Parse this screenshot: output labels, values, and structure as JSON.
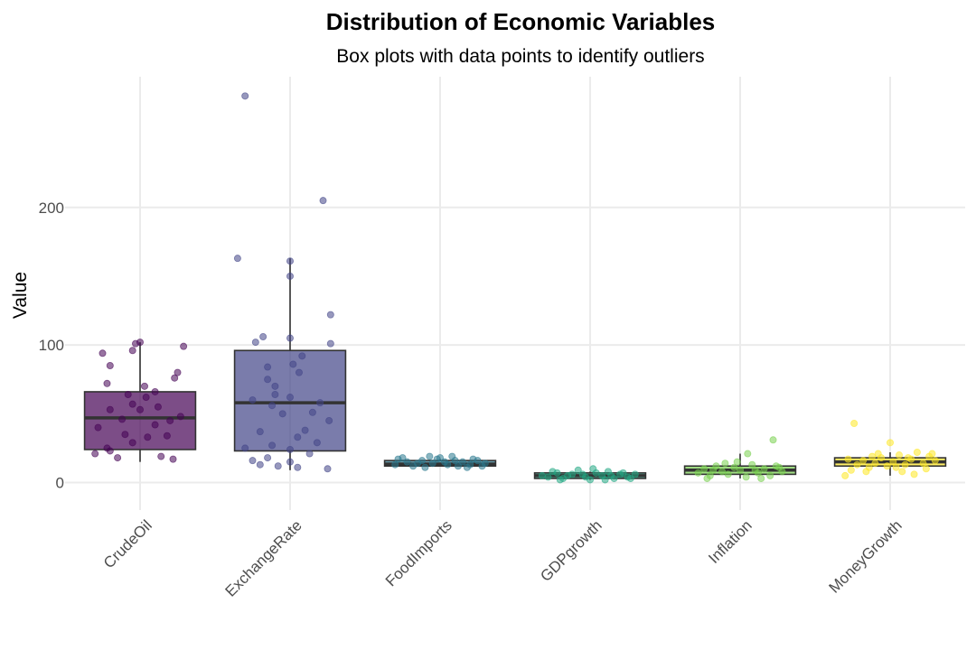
{
  "chart_data": {
    "type": "boxplot",
    "title": "Distribution of Economic Variables",
    "subtitle": "Box plots with data points to identify outliers",
    "xlabel": "",
    "ylabel": "Value",
    "ylim": [
      -20,
      295
    ],
    "yticks": [
      0,
      100,
      200
    ],
    "grid": true,
    "legend": "none",
    "categories": [
      "CrudeOil",
      "ExchangeRate",
      "FoodImports",
      "GDPgrowth",
      "Inflation",
      "MoneyGrowth"
    ],
    "colors": [
      "#440154",
      "#414487",
      "#2a788e",
      "#22a884",
      "#7ad151",
      "#fde725"
    ],
    "boxes": [
      {
        "q1": 24,
        "median": 47,
        "q3": 66,
        "whisker_low": 15,
        "whisker_high": 102
      },
      {
        "q1": 23,
        "median": 58,
        "q3": 96,
        "whisker_low": 9,
        "whisker_high": 163
      },
      {
        "q1": 12,
        "median": 13.5,
        "q3": 16,
        "whisker_low": 12,
        "whisker_high": 17
      },
      {
        "q1": 3,
        "median": 5,
        "q3": 7,
        "whisker_low": 2,
        "whisker_high": 8
      },
      {
        "q1": 6,
        "median": 9,
        "q3": 12,
        "whisker_low": 3,
        "whisker_high": 21
      },
      {
        "q1": 12,
        "median": 15,
        "q3": 18,
        "whisker_low": 5,
        "whisker_high": 22
      }
    ],
    "points": [
      [
        {
          "dx": -0.3,
          "y": 21
        },
        {
          "dx": 0.14,
          "y": 19
        },
        {
          "dx": -0.15,
          "y": 18
        },
        {
          "dx": -0.22,
          "y": 25
        },
        {
          "dx": -0.2,
          "y": 23
        },
        {
          "dx": 0.22,
          "y": 17
        },
        {
          "dx": -0.05,
          "y": 29
        },
        {
          "dx": 0.05,
          "y": 33
        },
        {
          "dx": 0.18,
          "y": 34
        },
        {
          "dx": -0.1,
          "y": 35
        },
        {
          "dx": -0.28,
          "y": 40
        },
        {
          "dx": 0.1,
          "y": 42
        },
        {
          "dx": 0.2,
          "y": 45
        },
        {
          "dx": -0.12,
          "y": 46
        },
        {
          "dx": 0.27,
          "y": 48
        },
        {
          "dx": -0.2,
          "y": 53
        },
        {
          "dx": 0.0,
          "y": 53
        },
        {
          "dx": 0.12,
          "y": 55
        },
        {
          "dx": -0.05,
          "y": 57
        },
        {
          "dx": 0.04,
          "y": 62
        },
        {
          "dx": -0.08,
          "y": 64
        },
        {
          "dx": 0.1,
          "y": 66
        },
        {
          "dx": 0.03,
          "y": 70
        },
        {
          "dx": -0.22,
          "y": 72
        },
        {
          "dx": 0.23,
          "y": 76
        },
        {
          "dx": 0.25,
          "y": 80
        },
        {
          "dx": -0.2,
          "y": 85
        },
        {
          "dx": -0.25,
          "y": 94
        },
        {
          "dx": -0.05,
          "y": 96
        },
        {
          "dx": -0.03,
          "y": 101
        },
        {
          "dx": 0.0,
          "y": 102
        },
        {
          "dx": 0.29,
          "y": 99
        }
      ],
      [
        {
          "dx": -0.25,
          "y": 16
        },
        {
          "dx": -0.2,
          "y": 13
        },
        {
          "dx": -0.08,
          "y": 12
        },
        {
          "dx": 0.0,
          "y": 15
        },
        {
          "dx": -0.15,
          "y": 18
        },
        {
          "dx": 0.05,
          "y": 11
        },
        {
          "dx": 0.25,
          "y": 10
        },
        {
          "dx": -0.3,
          "y": 25
        },
        {
          "dx": 0.13,
          "y": 21
        },
        {
          "dx": 0.0,
          "y": 24
        },
        {
          "dx": -0.12,
          "y": 27
        },
        {
          "dx": 0.18,
          "y": 29
        },
        {
          "dx": 0.05,
          "y": 33
        },
        {
          "dx": -0.2,
          "y": 37
        },
        {
          "dx": 0.1,
          "y": 38
        },
        {
          "dx": 0.26,
          "y": 45
        },
        {
          "dx": -0.05,
          "y": 50
        },
        {
          "dx": 0.15,
          "y": 51
        },
        {
          "dx": -0.12,
          "y": 56
        },
        {
          "dx": 0.2,
          "y": 58
        },
        {
          "dx": -0.25,
          "y": 60
        },
        {
          "dx": 0.0,
          "y": 62
        },
        {
          "dx": -0.1,
          "y": 64
        },
        {
          "dx": -0.1,
          "y": 70
        },
        {
          "dx": -0.15,
          "y": 75
        },
        {
          "dx": 0.06,
          "y": 80
        },
        {
          "dx": -0.15,
          "y": 84
        },
        {
          "dx": 0.02,
          "y": 86
        },
        {
          "dx": 0.08,
          "y": 92
        },
        {
          "dx": 0.27,
          "y": 101
        },
        {
          "dx": -0.23,
          "y": 102
        },
        {
          "dx": -0.18,
          "y": 106
        },
        {
          "dx": 0.0,
          "y": 105
        },
        {
          "dx": 0.27,
          "y": 122
        },
        {
          "dx": 0.0,
          "y": 150
        },
        {
          "dx": 0.0,
          "y": 161
        },
        {
          "dx": -0.35,
          "y": 163
        },
        {
          "dx": 0.22,
          "y": 205
        },
        {
          "dx": -0.3,
          "y": 281
        }
      ],
      [
        {
          "dx": -0.3,
          "y": 13
        },
        {
          "dx": -0.22,
          "y": 15
        },
        {
          "dx": -0.18,
          "y": 12
        },
        {
          "dx": -0.12,
          "y": 16
        },
        {
          "dx": -0.1,
          "y": 11
        },
        {
          "dx": -0.05,
          "y": 14
        },
        {
          "dx": 0.0,
          "y": 18
        },
        {
          "dx": 0.05,
          "y": 13
        },
        {
          "dx": 0.08,
          "y": 19
        },
        {
          "dx": 0.12,
          "y": 12
        },
        {
          "dx": 0.15,
          "y": 15
        },
        {
          "dx": 0.2,
          "y": 13
        },
        {
          "dx": 0.25,
          "y": 16
        },
        {
          "dx": 0.3,
          "y": 14
        },
        {
          "dx": -0.25,
          "y": 18
        },
        {
          "dx": -0.15,
          "y": 14
        },
        {
          "dx": 0.03,
          "y": 15
        },
        {
          "dx": 0.18,
          "y": 11
        },
        {
          "dx": -0.02,
          "y": 17
        },
        {
          "dx": 0.28,
          "y": 12
        },
        {
          "dx": -0.28,
          "y": 17
        },
        {
          "dx": 0.1,
          "y": 16
        },
        {
          "dx": -0.07,
          "y": 19
        },
        {
          "dx": 0.22,
          "y": 17
        }
      ],
      [
        {
          "dx": -0.32,
          "y": 5
        },
        {
          "dx": -0.28,
          "y": 4
        },
        {
          "dx": -0.22,
          "y": 7
        },
        {
          "dx": -0.18,
          "y": 3
        },
        {
          "dx": -0.12,
          "y": 6
        },
        {
          "dx": -0.08,
          "y": 9
        },
        {
          "dx": -0.03,
          "y": 4
        },
        {
          "dx": 0.0,
          "y": 2
        },
        {
          "dx": 0.04,
          "y": 7
        },
        {
          "dx": 0.08,
          "y": 5
        },
        {
          "dx": 0.12,
          "y": 8
        },
        {
          "dx": 0.16,
          "y": 3
        },
        {
          "dx": 0.2,
          "y": 6
        },
        {
          "dx": 0.25,
          "y": 4
        },
        {
          "dx": 0.3,
          "y": 6
        },
        {
          "dx": -0.25,
          "y": 8
        },
        {
          "dx": -0.15,
          "y": 5
        },
        {
          "dx": 0.02,
          "y": 10
        },
        {
          "dx": 0.1,
          "y": 2
        },
        {
          "dx": 0.22,
          "y": 7
        },
        {
          "dx": -0.05,
          "y": 6
        },
        {
          "dx": 0.14,
          "y": 5
        },
        {
          "dx": -0.2,
          "y": 2
        },
        {
          "dx": 0.27,
          "y": 3
        }
      ],
      [
        {
          "dx": -0.28,
          "y": 7
        },
        {
          "dx": -0.24,
          "y": 10
        },
        {
          "dx": -0.2,
          "y": 5
        },
        {
          "dx": -0.16,
          "y": 12
        },
        {
          "dx": -0.12,
          "y": 8
        },
        {
          "dx": -0.08,
          "y": 6
        },
        {
          "dx": -0.04,
          "y": 11
        },
        {
          "dx": 0.0,
          "y": 9
        },
        {
          "dx": 0.04,
          "y": 4
        },
        {
          "dx": 0.08,
          "y": 13
        },
        {
          "dx": 0.12,
          "y": 7
        },
        {
          "dx": 0.16,
          "y": 10
        },
        {
          "dx": 0.2,
          "y": 5
        },
        {
          "dx": 0.24,
          "y": 12
        },
        {
          "dx": 0.28,
          "y": 8
        },
        {
          "dx": -0.22,
          "y": 3
        },
        {
          "dx": -0.02,
          "y": 15
        },
        {
          "dx": 0.05,
          "y": 21
        },
        {
          "dx": 0.14,
          "y": 3
        },
        {
          "dx": 0.22,
          "y": 31
        },
        {
          "dx": -0.1,
          "y": 14
        },
        {
          "dx": 0.1,
          "y": 9
        },
        {
          "dx": -0.18,
          "y": 9
        },
        {
          "dx": 0.26,
          "y": 11
        }
      ],
      [
        {
          "dx": -0.3,
          "y": 5
        },
        {
          "dx": -0.26,
          "y": 9
        },
        {
          "dx": -0.22,
          "y": 13
        },
        {
          "dx": -0.18,
          "y": 16
        },
        {
          "dx": -0.14,
          "y": 11
        },
        {
          "dx": -0.1,
          "y": 14
        },
        {
          "dx": -0.06,
          "y": 18
        },
        {
          "dx": -0.02,
          "y": 12
        },
        {
          "dx": 0.02,
          "y": 15
        },
        {
          "dx": 0.06,
          "y": 20
        },
        {
          "dx": 0.1,
          "y": 13
        },
        {
          "dx": 0.14,
          "y": 17
        },
        {
          "dx": 0.18,
          "y": 22
        },
        {
          "dx": 0.22,
          "y": 14
        },
        {
          "dx": 0.26,
          "y": 19
        },
        {
          "dx": 0.3,
          "y": 16
        },
        {
          "dx": -0.24,
          "y": 43
        },
        {
          "dx": 0.0,
          "y": 29
        },
        {
          "dx": 0.08,
          "y": 8
        },
        {
          "dx": 0.16,
          "y": 6
        },
        {
          "dx": -0.16,
          "y": 8
        },
        {
          "dx": 0.24,
          "y": 10
        },
        {
          "dx": -0.08,
          "y": 21
        },
        {
          "dx": 0.12,
          "y": 18
        },
        {
          "dx": 0.28,
          "y": 21
        },
        {
          "dx": -0.28,
          "y": 17
        },
        {
          "dx": 0.04,
          "y": 11
        },
        {
          "dx": -0.12,
          "y": 19
        }
      ]
    ]
  }
}
